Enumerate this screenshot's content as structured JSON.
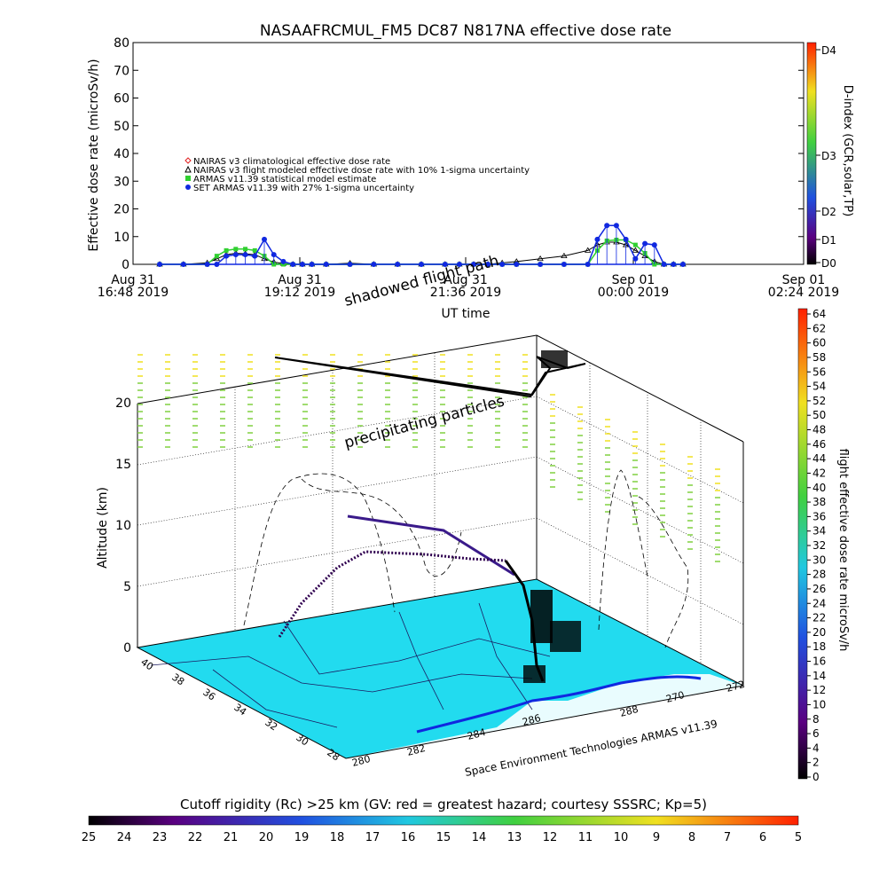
{
  "chart_data": [
    {
      "type": "line",
      "title": "NASAAFRCMUL_FM5 DC87 N817NA effective dose rate",
      "ylabel": "Effective dose rate (microSv/h)",
      "xlabel": "UT time",
      "ylim": [
        0,
        80
      ],
      "yticks": [
        "0",
        "10",
        "20",
        "30",
        "40",
        "50",
        "60",
        "70",
        "80"
      ],
      "xticks": [
        {
          "l1": "Aug 31",
          "l2": "16:48 2019"
        },
        {
          "l1": "Aug 31",
          "l2": "19:12 2019"
        },
        {
          "l1": "Aug 31",
          "l2": "21:36 2019"
        },
        {
          "l1": "Sep 01",
          "l2": "00:00 2019"
        },
        {
          "l1": "Sep 01",
          "l2": "02:24 2019"
        }
      ],
      "x_hours": [
        0,
        0.5,
        1.0,
        1.2,
        1.4,
        1.6,
        1.8,
        2.0,
        2.2,
        2.4,
        2.6,
        2.8,
        3.0,
        3.2,
        3.5,
        4.0,
        4.5,
        5.0,
        5.5,
        6.0,
        6.3,
        6.6,
        6.9,
        7.2,
        7.5,
        8.0,
        8.5,
        9.0,
        9.2,
        9.4,
        9.6,
        9.8,
        10.0,
        10.2,
        10.4,
        10.6,
        10.8,
        11.0
      ],
      "legend": [
        {
          "label": "NAIRAS v3 climatological effective dose rate",
          "symbol": "diamond",
          "color": "#e02020"
        },
        {
          "label": "NAIRAS v3 flight modeled effective dose rate with 10% 1-sigma uncertainty",
          "symbol": "triangle",
          "color": "#000000"
        },
        {
          "label": "ARMAS v11.39 statistical model estimate",
          "symbol": "star",
          "color": "#30d030"
        },
        {
          "label": "SET ARMAS v11.39 with 27% 1-sigma uncertainty",
          "symbol": "circle",
          "color": "#1028e0"
        }
      ],
      "series": [
        {
          "name": "NAIRAS v3 flight modeled effective dose rate with 10% 1-sigma uncertainty",
          "values": [
            0,
            0,
            0.5,
            2,
            3.5,
            4,
            3.8,
            3.5,
            2,
            0.8,
            0.3,
            0,
            0,
            0,
            0,
            0.4,
            0,
            0,
            0,
            0,
            0,
            0,
            0,
            0.5,
            1,
            2,
            3,
            5,
            7,
            8,
            8,
            7,
            5,
            3,
            1,
            0,
            0,
            0
          ]
        },
        {
          "name": "ARMAS v11.39 statistical model estimate",
          "values": [
            0,
            0,
            0,
            3,
            5,
            5.5,
            5.5,
            5,
            3,
            0,
            0,
            0,
            0,
            0,
            0,
            0,
            0,
            0,
            0,
            0,
            0,
            0,
            0,
            0,
            0,
            0,
            0,
            0,
            5,
            8.5,
            8.8,
            8.8,
            7,
            4,
            0,
            0,
            0,
            0
          ]
        },
        {
          "name": "SET ARMAS v11.39 with 27% 1-sigma uncertainty",
          "values": [
            0,
            0,
            0,
            0,
            3,
            3.5,
            3.5,
            3,
            9,
            3.5,
            1,
            0,
            0,
            0,
            0,
            0,
            0,
            0,
            0,
            0,
            0,
            0,
            0,
            0,
            0,
            0,
            0,
            0,
            9,
            14,
            14,
            9,
            2,
            7.5,
            7,
            0,
            0,
            0
          ]
        }
      ],
      "d_index": {
        "label": "D-index (GCR,solar,TP)",
        "ticks": [
          "D4",
          "D3",
          "D2",
          "D1",
          "D0"
        ]
      }
    },
    {
      "type": "scatter",
      "zlabel": "Altitude (km)",
      "zticks": [
        "0",
        "5",
        "10",
        "15",
        "20"
      ],
      "lat_ticks": [
        "40",
        "38",
        "36",
        "34",
        "32",
        "30",
        "28"
      ],
      "lon_ticks": [
        "280",
        "282",
        "284",
        "286",
        "288",
        "270",
        "272"
      ],
      "annotations": [
        "shadowed flight path",
        "precipitating particles",
        "Space Environment Technologies ARMAS v11.39"
      ],
      "colorbar": {
        "label": "flight effective dose rate microSv/h",
        "ticks": [
          "64",
          "62",
          "60",
          "58",
          "56",
          "54",
          "52",
          "50",
          "48",
          "46",
          "44",
          "42",
          "40",
          "38",
          "36",
          "34",
          "32",
          "30",
          "28",
          "26",
          "24",
          "22",
          "20",
          "18",
          "16",
          "14",
          "12",
          "10",
          "8",
          "6",
          "4",
          "2",
          "0"
        ]
      }
    }
  ],
  "cutoff": {
    "label": "Cutoff rigidity (Rc) >25 km (GV: red = greatest hazard; courtesy SSSRC; Kp=5)",
    "ticks": [
      "25",
      "24",
      "23",
      "22",
      "21",
      "20",
      "19",
      "18",
      "17",
      "16",
      "15",
      "14",
      "13",
      "12",
      "11",
      "10",
      "9",
      "8",
      "7",
      "6",
      "5"
    ]
  },
  "colors": {
    "ground": "#22dbef",
    "climatology": "#e02020",
    "nairas": "#000000",
    "armas_model": "#30d030",
    "set_armas": "#1028e0",
    "flight_path": "#5a1a8a"
  }
}
